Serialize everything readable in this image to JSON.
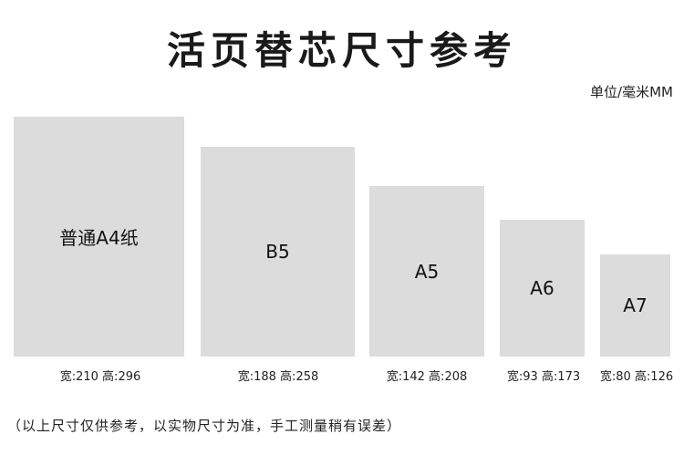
{
  "title": "活页替芯尺寸参考",
  "unit": "单位/毫米MM",
  "sheets": [
    {
      "label": "普通A4纸",
      "dims": "宽:210 高:296",
      "width_mm": 210,
      "height_mm": 296
    },
    {
      "label": "B5",
      "dims": "宽:188 高:258",
      "width_mm": 188,
      "height_mm": 258
    },
    {
      "label": "A5",
      "dims": "宽:142 高:208",
      "width_mm": 142,
      "height_mm": 208
    },
    {
      "label": "A6",
      "dims": "宽:93 高:173",
      "width_mm": 93,
      "height_mm": 173
    },
    {
      "label": "A7",
      "dims": "宽:80 高:126",
      "width_mm": 80,
      "height_mm": 126
    }
  ],
  "note": "（以上尺寸仅供参考，以实物尺寸为准，手工测量稍有误差）",
  "colors": {
    "sheet": "#dcdcdc",
    "text": "#222222"
  }
}
